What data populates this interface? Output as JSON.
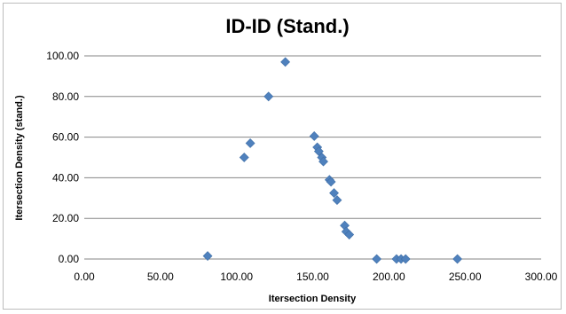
{
  "chart_data": {
    "type": "scatter",
    "title": "ID-ID (Stand.)",
    "xlabel": "Itersection Density",
    "ylabel": "Itersection Density (stand.)",
    "xlim": [
      0,
      300
    ],
    "ylim": [
      0,
      100
    ],
    "x_ticks": [
      "0.00",
      "50.00",
      "100.00",
      "150.00",
      "200.00",
      "250.00",
      "300.00"
    ],
    "y_ticks": [
      "0.00",
      "20.00",
      "40.00",
      "60.00",
      "80.00",
      "100.00"
    ],
    "gridlines": "horizontal",
    "marker": "diamond",
    "marker_color": "#4f81bd",
    "points": [
      {
        "x": 81,
        "y": 1.5
      },
      {
        "x": 105,
        "y": 50
      },
      {
        "x": 109,
        "y": 57
      },
      {
        "x": 121,
        "y": 80
      },
      {
        "x": 132,
        "y": 97
      },
      {
        "x": 151,
        "y": 60.5
      },
      {
        "x": 153,
        "y": 55
      },
      {
        "x": 154,
        "y": 53
      },
      {
        "x": 156,
        "y": 50
      },
      {
        "x": 157,
        "y": 48
      },
      {
        "x": 161,
        "y": 39
      },
      {
        "x": 162,
        "y": 38
      },
      {
        "x": 164,
        "y": 32.5
      },
      {
        "x": 166,
        "y": 29
      },
      {
        "x": 171,
        "y": 16.5
      },
      {
        "x": 172,
        "y": 13.5
      },
      {
        "x": 174,
        "y": 12
      },
      {
        "x": 192,
        "y": 0
      },
      {
        "x": 205,
        "y": 0
      },
      {
        "x": 208,
        "y": 0
      },
      {
        "x": 211,
        "y": 0
      },
      {
        "x": 245,
        "y": 0
      }
    ]
  }
}
